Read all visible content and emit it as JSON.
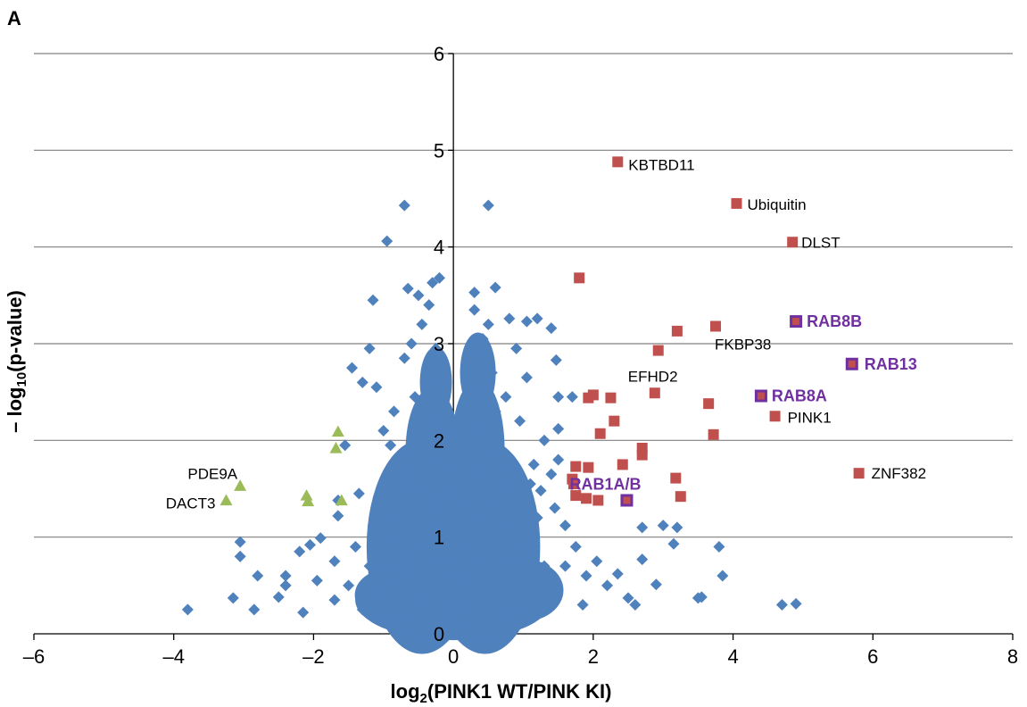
{
  "panel_label": "A",
  "colors": {
    "background": "#4f81bd",
    "upregulated": "#c0504d",
    "downregulated": "#9bbb59",
    "rab_highlight": "#7030a0",
    "rab_fill": "#c0504d",
    "grid": "#808080"
  },
  "chart_data": {
    "type": "scatter",
    "title": "",
    "xlabel_main": "log",
    "xlabel_sub": "2",
    "xlabel_rest": "(PINK1 WT/PINK KI)",
    "ylabel_pre": "– log",
    "ylabel_sub": "10",
    "ylabel_rest": "(p-value)",
    "xlim": [
      -6,
      8
    ],
    "ylim": [
      0,
      6
    ],
    "x_ticks": [
      -6,
      -4,
      -2,
      0,
      2,
      4,
      6,
      8
    ],
    "x_tick_labels": [
      "–6",
      "–4",
      "–2",
      "0",
      "2",
      "4",
      "6",
      "8"
    ],
    "y_ticks": [
      0,
      1,
      2,
      3,
      4,
      5,
      6
    ],
    "y_tick_labels": [
      "0",
      "1",
      "2",
      "3",
      "4",
      "5",
      "6"
    ],
    "grid": "horizontal",
    "background_series": {
      "name": "",
      "marker": "diamond",
      "points": [
        [
          -0.7,
          4.43
        ],
        [
          -0.95,
          4.06
        ],
        [
          0.5,
          4.43
        ],
        [
          -0.2,
          3.68
        ],
        [
          -0.3,
          3.63
        ],
        [
          -0.65,
          3.57
        ],
        [
          0.6,
          3.58
        ],
        [
          -0.5,
          3.5
        ],
        [
          0.3,
          3.53
        ],
        [
          -1.15,
          3.45
        ],
        [
          -0.35,
          3.4
        ],
        [
          1.2,
          3.26
        ],
        [
          1.05,
          3.23
        ],
        [
          0.8,
          3.26
        ],
        [
          1.4,
          3.16
        ],
        [
          -1.2,
          2.95
        ],
        [
          -1.45,
          2.75
        ],
        [
          -1.3,
          2.6
        ],
        [
          -0.7,
          2.85
        ],
        [
          0.9,
          2.95
        ],
        [
          1.05,
          2.65
        ],
        [
          1.5,
          2.45
        ],
        [
          1.47,
          2.83
        ],
        [
          1.5,
          2.12
        ],
        [
          1.7,
          2.45
        ],
        [
          1.5,
          1.8
        ],
        [
          1.4,
          1.65
        ],
        [
          1.25,
          1.48
        ],
        [
          1.45,
          1.3
        ],
        [
          1.6,
          1.12
        ],
        [
          2.7,
          1.1
        ],
        [
          3.0,
          1.12
        ],
        [
          3.2,
          1.1
        ],
        [
          3.15,
          0.93
        ],
        [
          2.7,
          0.77
        ],
        [
          3.8,
          0.9
        ],
        [
          3.85,
          0.6
        ],
        [
          2.5,
          0.37
        ],
        [
          2.6,
          0.3
        ],
        [
          2.35,
          0.62
        ],
        [
          3.5,
          0.37
        ],
        [
          3.55,
          0.38
        ],
        [
          4.7,
          0.3
        ],
        [
          4.9,
          0.31
        ],
        [
          2.9,
          0.51
        ],
        [
          -3.8,
          0.25
        ],
        [
          -3.15,
          0.37
        ],
        [
          -2.85,
          0.25
        ],
        [
          -3.05,
          0.95
        ],
        [
          -3.05,
          0.8
        ],
        [
          -2.8,
          0.6
        ],
        [
          -2.4,
          0.5
        ],
        [
          -2.2,
          0.85
        ],
        [
          -2.4,
          0.6
        ],
        [
          -2.5,
          0.38
        ],
        [
          -2.15,
          0.22
        ],
        [
          -2.05,
          0.92
        ],
        [
          -1.65,
          1.38
        ],
        [
          -1.65,
          1.22
        ],
        [
          -1.9,
          0.99
        ],
        [
          -1.55,
          1.95
        ],
        [
          -1.7,
          0.75
        ],
        [
          -1.95,
          0.55
        ],
        [
          -1.35,
          1.45
        ],
        [
          -1.1,
          2.55
        ],
        [
          -0.85,
          2.3
        ],
        [
          -1.0,
          2.1
        ],
        [
          -0.9,
          1.95
        ],
        [
          -0.75,
          1.7
        ],
        [
          -0.6,
          1.5
        ],
        [
          -1.4,
          0.9
        ],
        [
          -1.2,
          0.7
        ],
        [
          -1.5,
          0.5
        ],
        [
          -1.7,
          0.35
        ],
        [
          -1.3,
          0.25
        ],
        [
          -0.9,
          1.2
        ],
        [
          -0.8,
          1.0
        ],
        [
          -1.1,
          0.4
        ],
        [
          -0.95,
          0.15
        ],
        [
          -0.8,
          0.55
        ],
        [
          -0.7,
          0.8
        ],
        [
          -0.55,
          1.15
        ],
        [
          -0.5,
          0.9
        ],
        [
          -0.45,
          0.6
        ],
        [
          -0.4,
          0.35
        ],
        [
          -0.35,
          2.6
        ],
        [
          -0.3,
          2.2
        ],
        [
          -0.25,
          1.8
        ],
        [
          -0.2,
          1.4
        ],
        [
          -0.15,
          1.0
        ],
        [
          -0.1,
          0.6
        ],
        [
          -0.08,
          0.3
        ],
        [
          -0.05,
          0.12
        ],
        [
          0.0,
          0.05
        ],
        [
          0.05,
          0.1
        ],
        [
          0.1,
          0.3
        ],
        [
          0.15,
          0.55
        ],
        [
          0.2,
          0.9
        ],
        [
          0.25,
          1.3
        ],
        [
          0.3,
          1.7
        ],
        [
          0.35,
          2.1
        ],
        [
          0.4,
          2.5
        ],
        [
          0.45,
          2.9
        ],
        [
          0.5,
          3.2
        ],
        [
          0.55,
          2.7
        ],
        [
          0.6,
          2.3
        ],
        [
          0.65,
          1.9
        ],
        [
          0.7,
          1.5
        ],
        [
          0.75,
          1.1
        ],
        [
          0.8,
          0.75
        ],
        [
          0.85,
          0.45
        ],
        [
          0.9,
          0.25
        ],
        [
          1.0,
          0.55
        ],
        [
          1.1,
          0.9
        ],
        [
          1.2,
          1.2
        ],
        [
          1.3,
          0.7
        ],
        [
          1.45,
          0.4
        ],
        [
          1.6,
          0.7
        ],
        [
          1.75,
          0.9
        ],
        [
          1.9,
          0.6
        ],
        [
          2.05,
          0.75
        ],
        [
          2.2,
          0.5
        ],
        [
          1.85,
          0.3
        ],
        [
          1.15,
          1.75
        ],
        [
          1.3,
          2.0
        ],
        [
          0.95,
          2.2
        ],
        [
          1.1,
          1.55
        ],
        [
          -0.6,
          3.0
        ],
        [
          -0.45,
          3.2
        ],
        [
          0.3,
          3.35
        ],
        [
          0.42,
          3.05
        ],
        [
          -0.25,
          2.95
        ],
        [
          0.2,
          2.75
        ],
        [
          -0.55,
          2.45
        ],
        [
          0.75,
          2.45
        ]
      ]
    },
    "highlight_up": {
      "name": "",
      "marker": "square",
      "points": [
        [
          2.35,
          4.88
        ],
        [
          4.05,
          4.45
        ],
        [
          4.85,
          4.05
        ],
        [
          1.8,
          3.68
        ],
        [
          3.2,
          3.13
        ],
        [
          3.75,
          3.18
        ],
        [
          2.93,
          2.93
        ],
        [
          2.0,
          2.47
        ],
        [
          1.93,
          2.44
        ],
        [
          2.25,
          2.44
        ],
        [
          2.88,
          2.49
        ],
        [
          3.65,
          2.38
        ],
        [
          4.6,
          2.25
        ],
        [
          2.3,
          2.2
        ],
        [
          2.1,
          2.07
        ],
        [
          3.72,
          2.06
        ],
        [
          2.7,
          1.92
        ],
        [
          2.7,
          1.85
        ],
        [
          2.42,
          1.75
        ],
        [
          1.75,
          1.73
        ],
        [
          1.93,
          1.72
        ],
        [
          1.7,
          1.6
        ],
        [
          1.72,
          1.55
        ],
        [
          3.18,
          1.61
        ],
        [
          5.8,
          1.66
        ],
        [
          1.75,
          1.43
        ],
        [
          1.9,
          1.4
        ],
        [
          2.07,
          1.38
        ],
        [
          3.25,
          1.42
        ]
      ]
    },
    "highlight_down": {
      "name": "",
      "marker": "triangle",
      "points": [
        [
          -1.65,
          2.09
        ],
        [
          -1.68,
          1.92
        ],
        [
          -3.05,
          1.53
        ],
        [
          -3.25,
          1.38
        ],
        [
          -2.1,
          1.43
        ],
        [
          -2.08,
          1.37
        ],
        [
          -1.6,
          1.38
        ]
      ]
    },
    "rab_points": [
      {
        "label": "RAB8B",
        "x": 4.9,
        "y": 3.23
      },
      {
        "label": "RAB13",
        "x": 5.7,
        "y": 2.79
      },
      {
        "label": "RAB8A",
        "x": 4.4,
        "y": 2.46
      },
      {
        "label": "RAB1A/B",
        "x": 2.48,
        "y": 1.38
      }
    ],
    "annotations": [
      {
        "label": "KBTBD11",
        "x": 2.35,
        "y": 4.88
      },
      {
        "label": "Ubiquitin",
        "x": 4.05,
        "y": 4.45
      },
      {
        "label": "DLST",
        "x": 4.85,
        "y": 4.05
      },
      {
        "label": "FKBP38",
        "x": 3.75,
        "y": 3.18
      },
      {
        "label": "EFHD2",
        "x": 2.88,
        "y": 2.49
      },
      {
        "label": "PINK1",
        "x": 4.6,
        "y": 2.25
      },
      {
        "label": "ZNF382",
        "x": 5.8,
        "y": 1.66
      },
      {
        "label": "PDE9A",
        "x": -3.05,
        "y": 1.53
      },
      {
        "label": "DACT3",
        "x": -3.25,
        "y": 1.38
      }
    ]
  }
}
